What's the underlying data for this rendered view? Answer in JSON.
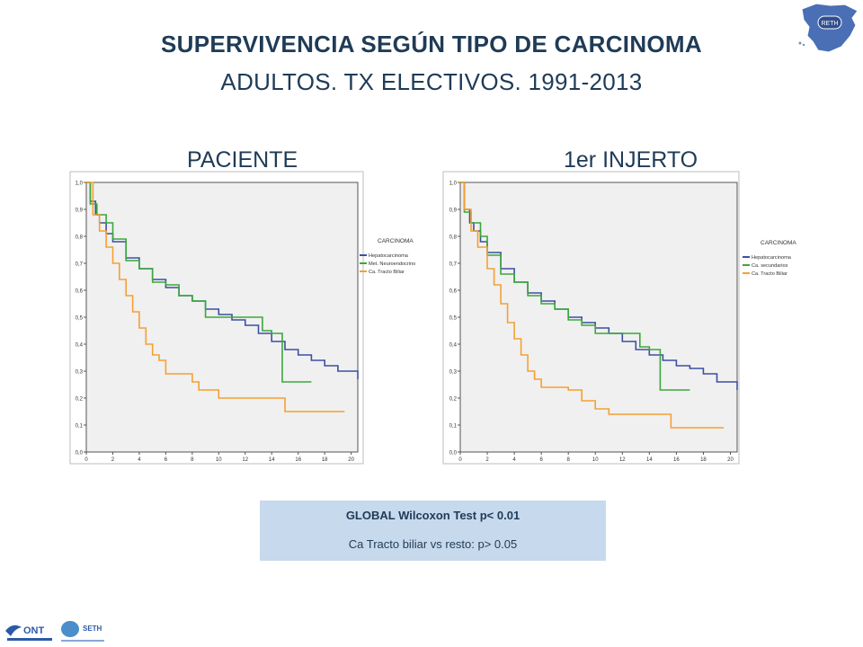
{
  "title": "SUPERVIVENCIA SEGÚN TIPO DE CARCINOMA",
  "subtitle": "ADULTOS. TX ELECTIVOS. 1991-2013",
  "logos": {
    "top_right": "RETH",
    "ont": "ONT",
    "seth": "SETH"
  },
  "stats": {
    "line1": "GLOBAL Wilcoxon Test p< 0.01",
    "line2": "Ca Tracto biliar vs resto: p> 0.05"
  },
  "colors": {
    "title": "#1f3b57",
    "blue": "#3c4fa3",
    "green": "#3aa83a",
    "orange": "#f5a032",
    "plot_bg": "#f0f0f0",
    "stats_bg": "#c7d9ec"
  },
  "chart_data": [
    {
      "type": "line",
      "panel_title": "PACIENTE",
      "xlim": [
        0,
        20.5
      ],
      "ylim": [
        0,
        1
      ],
      "xticks": [
        "0",
        "2",
        "4",
        "6",
        "8",
        "10",
        "12",
        "14",
        "16",
        "18",
        "20"
      ],
      "yticks": [
        "0,0",
        "0,1",
        "0,2",
        "0,3",
        "0,4",
        "0,5",
        "0,6",
        "0,7",
        "0,8",
        "0,9",
        "1,0"
      ],
      "legend_title": "CARCINOMA",
      "series": [
        {
          "name": "Hepatocarcinoma",
          "color": "#3c4fa3",
          "points": [
            [
              0,
              1.0
            ],
            [
              0.3,
              0.93
            ],
            [
              0.7,
              0.88
            ],
            [
              1,
              0.85
            ],
            [
              1.5,
              0.81
            ],
            [
              2,
              0.78
            ],
            [
              3,
              0.72
            ],
            [
              4,
              0.68
            ],
            [
              5,
              0.64
            ],
            [
              6,
              0.61
            ],
            [
              7,
              0.58
            ],
            [
              8,
              0.56
            ],
            [
              9,
              0.53
            ],
            [
              10,
              0.51
            ],
            [
              11,
              0.49
            ],
            [
              12,
              0.47
            ],
            [
              13,
              0.44
            ],
            [
              14,
              0.41
            ],
            [
              15,
              0.38
            ],
            [
              16,
              0.36
            ],
            [
              17,
              0.34
            ],
            [
              18,
              0.32
            ],
            [
              19,
              0.3
            ],
            [
              20,
              0.3
            ],
            [
              20.5,
              0.27
            ]
          ]
        },
        {
          "name": "Met. Neuroendocrino",
          "color": "#3aa83a",
          "points": [
            [
              0,
              1.0
            ],
            [
              0.3,
              0.92
            ],
            [
              0.8,
              0.88
            ],
            [
              1.5,
              0.85
            ],
            [
              2,
              0.79
            ],
            [
              3,
              0.71
            ],
            [
              4,
              0.68
            ],
            [
              5,
              0.63
            ],
            [
              6,
              0.62
            ],
            [
              7,
              0.58
            ],
            [
              8,
              0.56
            ],
            [
              9,
              0.5
            ],
            [
              10,
              0.5
            ],
            [
              13.3,
              0.45
            ],
            [
              14,
              0.44
            ],
            [
              14.7,
              0.44
            ],
            [
              14.8,
              0.26
            ],
            [
              17,
              0.26
            ]
          ]
        },
        {
          "name": "Ca. Tracto Biliar",
          "color": "#f5a032",
          "points": [
            [
              0,
              1.0
            ],
            [
              0.5,
              0.88
            ],
            [
              1,
              0.82
            ],
            [
              1.5,
              0.76
            ],
            [
              2,
              0.7
            ],
            [
              2.5,
              0.64
            ],
            [
              3,
              0.58
            ],
            [
              3.5,
              0.52
            ],
            [
              4,
              0.46
            ],
            [
              4.5,
              0.4
            ],
            [
              5,
              0.36
            ],
            [
              5.5,
              0.34
            ],
            [
              6,
              0.29
            ],
            [
              7.5,
              0.29
            ],
            [
              8,
              0.26
            ],
            [
              8.5,
              0.23
            ],
            [
              10,
              0.2
            ],
            [
              14.8,
              0.2
            ],
            [
              15,
              0.15
            ],
            [
              19.5,
              0.15
            ]
          ]
        }
      ]
    },
    {
      "type": "line",
      "panel_title": "1er INJERTO",
      "xlim": [
        0,
        20.5
      ],
      "ylim": [
        0,
        1
      ],
      "xticks": [
        "0",
        "2",
        "4",
        "6",
        "8",
        "10",
        "12",
        "14",
        "16",
        "18",
        "20"
      ],
      "yticks": [
        "0,0",
        "0,1",
        "0,2",
        "0,3",
        "0,4",
        "0,5",
        "0,6",
        "0,7",
        "0,8",
        "0,9",
        "1,0"
      ],
      "legend_title": "CARCINOMA",
      "series": [
        {
          "name": "Hepatocarcinoma",
          "color": "#3c4fa3",
          "points": [
            [
              0,
              1.0
            ],
            [
              0.3,
              0.9
            ],
            [
              0.7,
              0.85
            ],
            [
              1,
              0.82
            ],
            [
              1.5,
              0.78
            ],
            [
              2,
              0.74
            ],
            [
              3,
              0.68
            ],
            [
              4,
              0.63
            ],
            [
              5,
              0.59
            ],
            [
              6,
              0.56
            ],
            [
              7,
              0.53
            ],
            [
              8,
              0.5
            ],
            [
              9,
              0.48
            ],
            [
              10,
              0.46
            ],
            [
              11,
              0.44
            ],
            [
              12,
              0.41
            ],
            [
              13,
              0.38
            ],
            [
              14,
              0.36
            ],
            [
              15,
              0.34
            ],
            [
              16,
              0.32
            ],
            [
              17,
              0.31
            ],
            [
              18,
              0.29
            ],
            [
              19,
              0.26
            ],
            [
              20,
              0.26
            ],
            [
              20.5,
              0.23
            ]
          ]
        },
        {
          "name": "Ca. secundarios",
          "color": "#3aa83a",
          "points": [
            [
              0,
              1.0
            ],
            [
              0.3,
              0.89
            ],
            [
              0.8,
              0.85
            ],
            [
              1.5,
              0.8
            ],
            [
              2,
              0.73
            ],
            [
              3,
              0.66
            ],
            [
              4,
              0.63
            ],
            [
              5,
              0.58
            ],
            [
              6,
              0.55
            ],
            [
              7,
              0.53
            ],
            [
              8,
              0.49
            ],
            [
              9,
              0.47
            ],
            [
              10,
              0.44
            ],
            [
              13.3,
              0.39
            ],
            [
              14,
              0.38
            ],
            [
              14.7,
              0.38
            ],
            [
              14.8,
              0.23
            ],
            [
              17,
              0.23
            ]
          ]
        },
        {
          "name": "Ca. Tracto Biliar",
          "color": "#f5a032",
          "points": [
            [
              0,
              1.0
            ],
            [
              0.3,
              0.9
            ],
            [
              0.8,
              0.82
            ],
            [
              1.3,
              0.76
            ],
            [
              2,
              0.68
            ],
            [
              2.5,
              0.62
            ],
            [
              3,
              0.55
            ],
            [
              3.5,
              0.48
            ],
            [
              4,
              0.42
            ],
            [
              4.5,
              0.36
            ],
            [
              5,
              0.3
            ],
            [
              5.5,
              0.27
            ],
            [
              6,
              0.24
            ],
            [
              8,
              0.23
            ],
            [
              9,
              0.19
            ],
            [
              10,
              0.16
            ],
            [
              11,
              0.14
            ],
            [
              15.5,
              0.14
            ],
            [
              15.6,
              0.09
            ],
            [
              19.5,
              0.09
            ]
          ]
        }
      ]
    }
  ]
}
